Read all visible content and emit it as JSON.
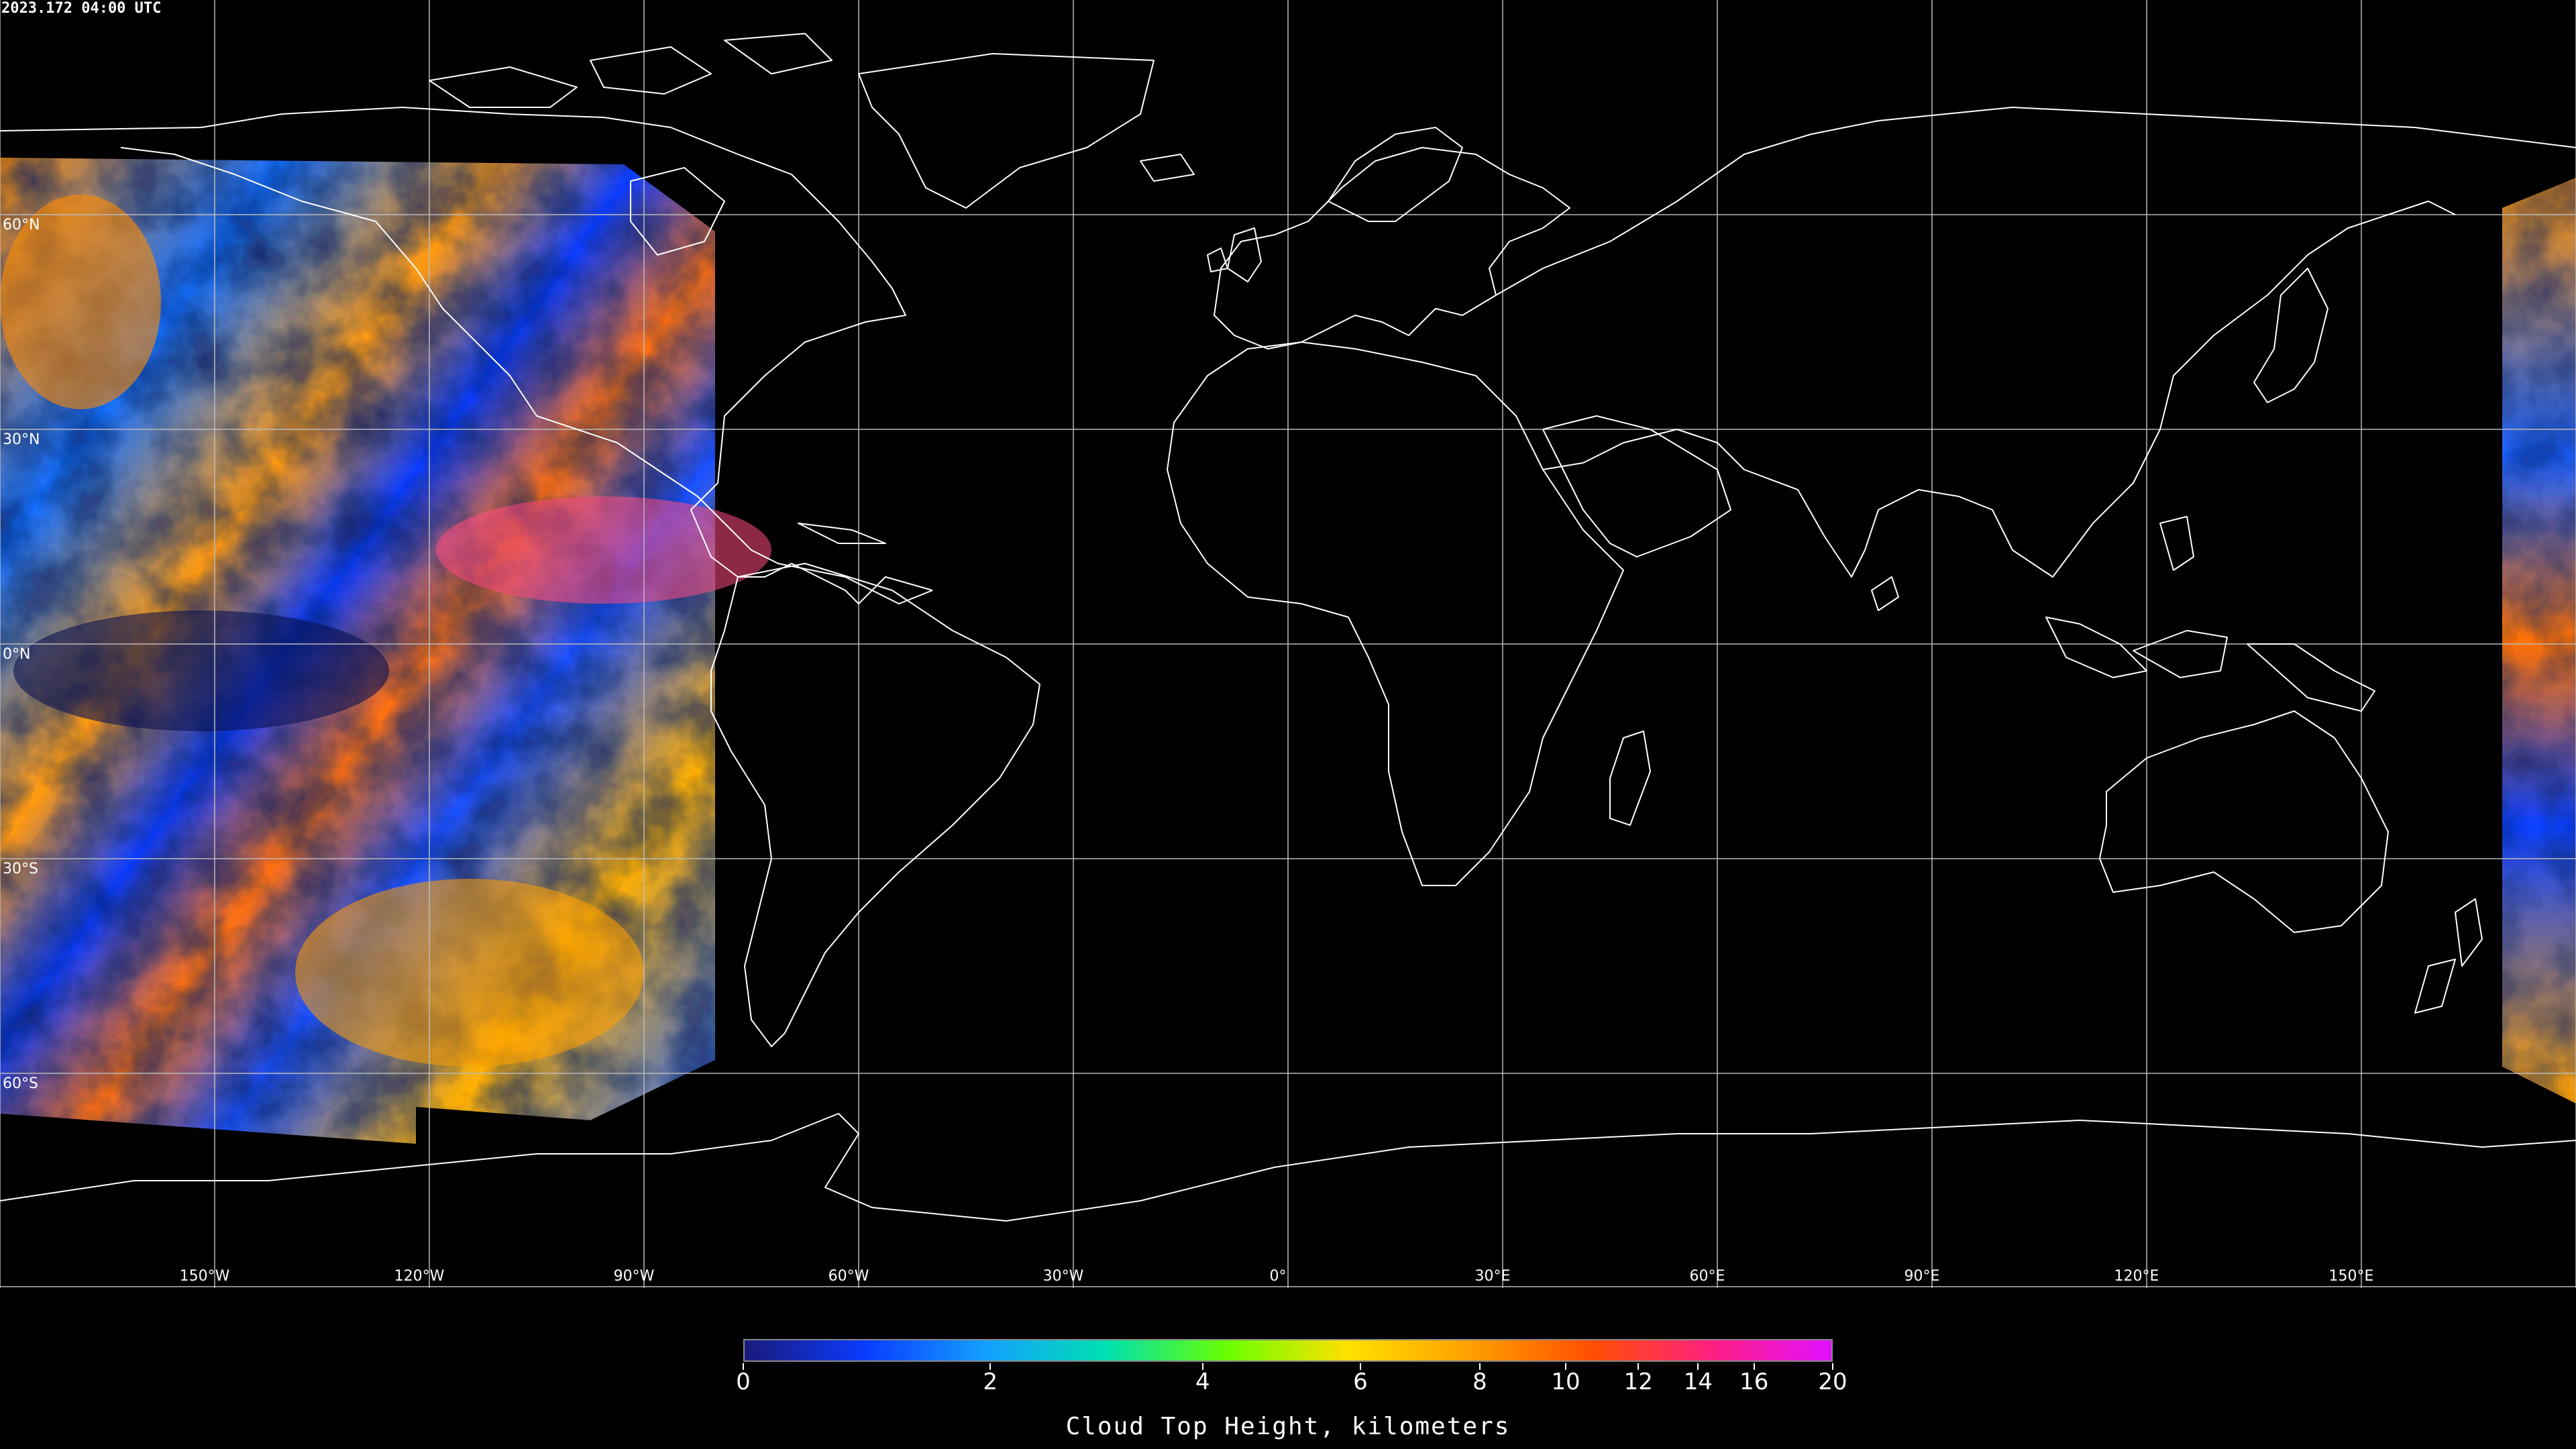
{
  "timestamp": "2023.172 04:00 UTC",
  "latitude_labels": [
    "60°N",
    "30°N",
    "0°N",
    "30°S",
    "60°S"
  ],
  "longitude_labels": [
    "150°W",
    "120°W",
    "90°W",
    "60°W",
    "30°W",
    "0°",
    "30°E",
    "60°E",
    "90°E",
    "120°E",
    "150°E"
  ],
  "colorbar": {
    "title": "Cloud Top Height, kilometers",
    "ticks": [
      "0",
      "2",
      "4",
      "6",
      "8",
      "10",
      "12",
      "14",
      "16",
      "20"
    ],
    "colors": [
      "#1a1a7a",
      "#0a3cff",
      "#14a0ff",
      "#00e0b0",
      "#6aff00",
      "#ffe000",
      "#ffa000",
      "#ff5000",
      "#ff2080",
      "#e010ff"
    ]
  },
  "colors": {
    "background": "#000000",
    "coastline": "#ffffff",
    "gridline": "#bbbbbb"
  }
}
